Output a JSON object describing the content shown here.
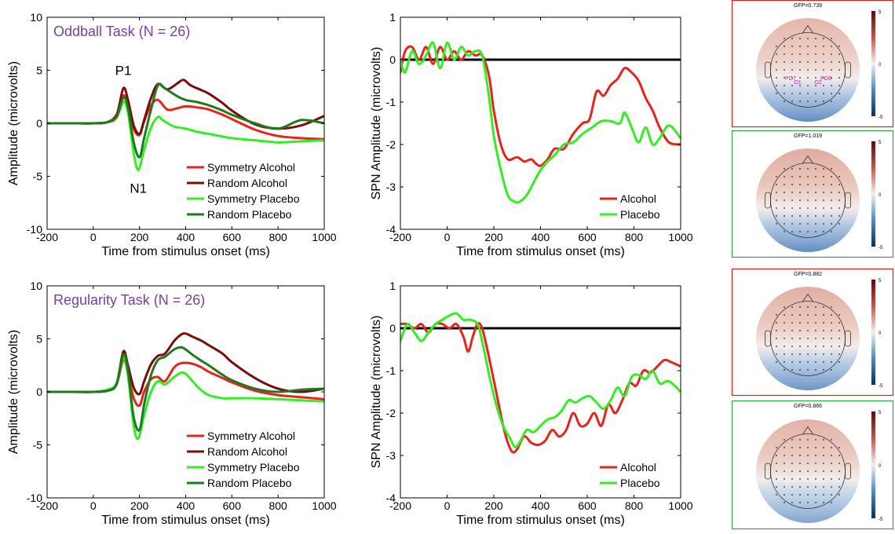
{
  "colors": {
    "symmetry_alcohol": "#e8231c",
    "random_alcohol": "#7a0c0c",
    "symmetry_placebo": "#33ee22",
    "random_placebo": "#1f7a1f",
    "task_title": "#7a3fa5",
    "topo_red_frame": "#d81f1f",
    "topo_green_frame": "#2aa84a",
    "electrode_label": "#cc22aa"
  },
  "chart_data": [
    {
      "id": "erp_oddball",
      "type": "line",
      "title": "Oddball Task (N = 26)",
      "xlabel": "Time from stimulus onset (ms)",
      "ylabel": "Amplitude (microvolts)",
      "xlim": [
        -200,
        1000
      ],
      "ylim": [
        -10,
        10
      ],
      "xticks": [
        -200,
        0,
        200,
        400,
        600,
        800,
        1000
      ],
      "yticks": [
        -10,
        -5,
        0,
        5,
        10
      ],
      "grid": false,
      "legend": "lower-right",
      "annotations": [
        {
          "text": "P1",
          "x": 130,
          "y": 5
        },
        {
          "text": "N1",
          "x": 195,
          "y": -6.1
        }
      ],
      "series": [
        {
          "name": "Symmetry Alcohol",
          "color_key": "symmetry_alcohol",
          "x": [
            -200,
            -100,
            0,
            60,
            100,
            130,
            150,
            175,
            200,
            220,
            250,
            280,
            320,
            360,
            400,
            450,
            500,
            560,
            600,
            700,
            800,
            900,
            1000
          ],
          "y": [
            0,
            0,
            0,
            0.1,
            0.8,
            2.6,
            1.8,
            -0.5,
            -1.1,
            0.2,
            1.7,
            2.2,
            1.3,
            1.4,
            1.6,
            1.5,
            1.3,
            0.8,
            0.4,
            -0.6,
            -1.2,
            -1.4,
            -1.5
          ]
        },
        {
          "name": "Random Alcohol",
          "color_key": "random_alcohol",
          "x": [
            -200,
            -100,
            0,
            60,
            100,
            130,
            150,
            175,
            200,
            220,
            250,
            280,
            320,
            360,
            390,
            420,
            460,
            500,
            560,
            600,
            700,
            800,
            900,
            1000
          ],
          "y": [
            0,
            0,
            0,
            0.1,
            0.7,
            3.3,
            2.2,
            -0.2,
            -1.0,
            0.3,
            2.4,
            3.7,
            3.2,
            3.7,
            4.1,
            3.6,
            3.2,
            2.8,
            1.9,
            1.2,
            -0.1,
            -0.5,
            -0.2,
            0.7
          ]
        },
        {
          "name": "Symmetry Placebo",
          "color_key": "symmetry_placebo",
          "x": [
            -200,
            -100,
            0,
            60,
            100,
            130,
            150,
            175,
            195,
            220,
            250,
            280,
            300,
            350,
            400,
            450,
            500,
            600,
            700,
            800,
            900,
            1000
          ],
          "y": [
            0,
            0,
            0,
            0.1,
            0.5,
            2.0,
            1.0,
            -2.8,
            -4.4,
            -2.5,
            -0.4,
            0.6,
            0.3,
            -0.3,
            -0.5,
            -0.8,
            -1.0,
            -1.4,
            -1.6,
            -1.8,
            -1.7,
            -1.6
          ]
        },
        {
          "name": "Random Placebo",
          "color_key": "random_placebo",
          "x": [
            -200,
            -100,
            0,
            60,
            100,
            130,
            150,
            175,
            200,
            220,
            250,
            280,
            310,
            360,
            400,
            450,
            500,
            560,
            600,
            700,
            800,
            900,
            1000
          ],
          "y": [
            0,
            0,
            0,
            0.1,
            0.6,
            2.4,
            1.5,
            -1.8,
            -3.2,
            -1.4,
            1.3,
            3.6,
            3.3,
            2.6,
            2.2,
            2.0,
            1.7,
            1.2,
            0.8,
            0,
            -0.5,
            0.3,
            0
          ]
        }
      ]
    },
    {
      "id": "spn_oddball",
      "type": "line",
      "xlabel": "Time from stimulus onset (ms)",
      "ylabel": "SPN Amplitude (microvolts)",
      "xlim": [
        -200,
        1000
      ],
      "ylim": [
        -4,
        1
      ],
      "xticks": [
        -200,
        0,
        200,
        400,
        600,
        800,
        1000
      ],
      "yticks": [
        -4,
        -3,
        -2,
        -1,
        0,
        1
      ],
      "grid": false,
      "legend": "lower-right",
      "zero_line": true,
      "series": [
        {
          "name": "Alcohol",
          "color_key": "symmetry_alcohol",
          "x": [
            -200,
            -180,
            -150,
            -120,
            -90,
            -60,
            -30,
            0,
            30,
            60,
            90,
            120,
            150,
            180,
            200,
            230,
            260,
            300,
            330,
            360,
            380,
            400,
            430,
            460,
            500,
            540,
            580,
            610,
            640,
            670,
            700,
            730,
            760,
            790,
            820,
            850,
            880,
            910,
            950,
            1000
          ],
          "y": [
            -0.3,
            0.2,
            0.3,
            0,
            0.3,
            -0.1,
            0.3,
            0,
            0.2,
            0,
            0.2,
            0.1,
            0.1,
            -0.4,
            -1.2,
            -2.0,
            -2.35,
            -2.3,
            -2.4,
            -2.35,
            -2.45,
            -2.5,
            -2.35,
            -2.1,
            -2.1,
            -1.75,
            -1.5,
            -1.4,
            -0.75,
            -0.85,
            -0.6,
            -0.45,
            -0.2,
            -0.3,
            -0.5,
            -0.9,
            -1.2,
            -1.6,
            -1.95,
            -2.0
          ]
        },
        {
          "name": "Placebo",
          "color_key": "symmetry_placebo",
          "x": [
            -200,
            -180,
            -150,
            -120,
            -90,
            -60,
            -30,
            0,
            30,
            60,
            90,
            120,
            150,
            180,
            200,
            230,
            260,
            290,
            310,
            340,
            370,
            400,
            430,
            460,
            500,
            540,
            580,
            620,
            660,
            700,
            740,
            760,
            790,
            820,
            850,
            880,
            910,
            950,
            1000
          ],
          "y": [
            0,
            -0.3,
            0.2,
            -0.1,
            0.1,
            0.4,
            -0.2,
            0.4,
            0,
            0.3,
            0.1,
            0.2,
            0.1,
            -0.9,
            -1.8,
            -2.6,
            -3.2,
            -3.35,
            -3.35,
            -3.2,
            -2.9,
            -2.6,
            -2.4,
            -2.25,
            -2.0,
            -1.95,
            -1.75,
            -1.6,
            -1.45,
            -1.45,
            -1.5,
            -1.25,
            -1.6,
            -1.95,
            -1.6,
            -2.0,
            -1.85,
            -1.55,
            -1.85
          ]
        }
      ]
    },
    {
      "id": "erp_regularity",
      "type": "line",
      "title": "Regularity Task (N = 26)",
      "xlabel": "Time from stimulus onset (ms)",
      "ylabel": "Amplitude (microvolts)",
      "xlim": [
        -200,
        1000
      ],
      "ylim": [
        -10,
        10
      ],
      "xticks": [
        -200,
        0,
        200,
        400,
        600,
        800,
        1000
      ],
      "yticks": [
        -10,
        -5,
        0,
        5,
        10
      ],
      "grid": false,
      "legend": "lower-right",
      "series": [
        {
          "name": "Symmetry Alcohol",
          "color_key": "symmetry_alcohol",
          "x": [
            -200,
            -100,
            0,
            60,
            100,
            130,
            150,
            175,
            200,
            220,
            250,
            280,
            310,
            350,
            380,
            420,
            460,
            500,
            560,
            600,
            700,
            800,
            900,
            1000
          ],
          "y": [
            0,
            0,
            0,
            0.1,
            0.7,
            3.0,
            1.8,
            -0.6,
            -1.3,
            0,
            1.2,
            1.4,
            1.0,
            2.3,
            2.7,
            2.7,
            2.4,
            1.9,
            1.3,
            0.9,
            0.1,
            -0.3,
            -0.5,
            -0.7
          ]
        },
        {
          "name": "Random Alcohol",
          "color_key": "random_alcohol",
          "x": [
            -200,
            -100,
            0,
            60,
            100,
            130,
            150,
            175,
            200,
            220,
            250,
            280,
            310,
            350,
            380,
            400,
            430,
            470,
            500,
            560,
            600,
            700,
            800,
            900,
            1000
          ],
          "y": [
            0,
            0,
            0,
            0.1,
            0.7,
            3.8,
            2.5,
            0.4,
            -0.2,
            1.0,
            2.6,
            3.4,
            3.6,
            4.8,
            5.4,
            5.5,
            5.2,
            4.8,
            4.4,
            3.6,
            2.8,
            1.3,
            0.3,
            0,
            0.3
          ]
        },
        {
          "name": "Symmetry Placebo",
          "color_key": "symmetry_placebo",
          "x": [
            -200,
            -100,
            0,
            60,
            100,
            130,
            150,
            175,
            195,
            220,
            250,
            280,
            310,
            350,
            380,
            400,
            430,
            460,
            500,
            560,
            600,
            700,
            800,
            900,
            1000
          ],
          "y": [
            0,
            0,
            0,
            0.2,
            0.8,
            3.2,
            1.5,
            -3.2,
            -4.4,
            -2.2,
            0,
            1.0,
            0.7,
            1.4,
            1.8,
            1.7,
            1.0,
            0.3,
            -0.3,
            -0.6,
            -0.6,
            -0.6,
            -0.7,
            -0.8,
            -0.9
          ]
        },
        {
          "name": "Random Placebo",
          "color_key": "random_placebo",
          "x": [
            -200,
            -100,
            0,
            60,
            100,
            130,
            150,
            175,
            200,
            220,
            250,
            280,
            310,
            350,
            380,
            400,
            430,
            470,
            500,
            560,
            600,
            700,
            800,
            900,
            1000
          ],
          "y": [
            0,
            0,
            0,
            0.1,
            0.7,
            3.5,
            2.0,
            -2.4,
            -3.6,
            -1.2,
            1.6,
            3.0,
            3.3,
            4.0,
            4.2,
            4.0,
            3.5,
            2.9,
            2.5,
            1.6,
            1.1,
            0.3,
            0,
            0.2,
            0.3
          ]
        }
      ]
    },
    {
      "id": "spn_regularity",
      "type": "line",
      "xlabel": "Time from stimulus onset (ms)",
      "ylabel": "SPN Amplitude (microvolts)",
      "xlim": [
        -200,
        1000
      ],
      "ylim": [
        -4,
        1
      ],
      "xticks": [
        -200,
        0,
        200,
        400,
        600,
        800,
        1000
      ],
      "yticks": [
        -4,
        -3,
        -2,
        -1,
        0,
        1
      ],
      "grid": false,
      "legend": "lower-right",
      "zero_line": true,
      "series": [
        {
          "name": "Alcohol",
          "color_key": "symmetry_alcohol",
          "x": [
            -200,
            -170,
            -140,
            -110,
            -80,
            -50,
            -20,
            10,
            40,
            70,
            90,
            110,
            130,
            150,
            180,
            210,
            240,
            260,
            280,
            300,
            330,
            360,
            390,
            420,
            450,
            480,
            510,
            540,
            570,
            600,
            630,
            660,
            690,
            720,
            750,
            780,
            810,
            840,
            870,
            900,
            930,
            960,
            1000
          ],
          "y": [
            0.1,
            0.1,
            0,
            0.1,
            -0.1,
            0.1,
            0.1,
            0,
            0.1,
            -0.2,
            -0.55,
            -0.2,
            0.1,
            0,
            -0.7,
            -1.5,
            -2.3,
            -2.7,
            -2.92,
            -2.85,
            -2.55,
            -2.7,
            -2.75,
            -2.65,
            -2.4,
            -2.55,
            -2.4,
            -2.0,
            -2.3,
            -2.25,
            -2.0,
            -2.3,
            -1.8,
            -2.0,
            -1.7,
            -1.3,
            -1.35,
            -1.0,
            -1.05,
            -0.9,
            -0.75,
            -0.8,
            -0.9
          ]
        },
        {
          "name": "Placebo",
          "color_key": "symmetry_placebo",
          "x": [
            -200,
            -170,
            -140,
            -110,
            -80,
            -50,
            -20,
            10,
            40,
            70,
            100,
            130,
            150,
            180,
            210,
            240,
            270,
            290,
            310,
            340,
            370,
            400,
            430,
            460,
            490,
            520,
            550,
            580,
            610,
            640,
            670,
            700,
            730,
            760,
            790,
            820,
            850,
            880,
            910,
            950,
            1000
          ],
          "y": [
            -0.3,
            0.1,
            -0.1,
            -0.3,
            -0.1,
            0.1,
            0.2,
            0.3,
            0.35,
            0.2,
            0.2,
            0.1,
            -0.3,
            -1.1,
            -1.8,
            -2.3,
            -2.6,
            -2.8,
            -2.7,
            -2.4,
            -2.45,
            -2.3,
            -2.15,
            -2.1,
            -1.95,
            -1.7,
            -1.75,
            -1.65,
            -1.6,
            -1.75,
            -1.9,
            -1.7,
            -1.4,
            -1.6,
            -1.15,
            -1.1,
            -1.2,
            -1.0,
            -1.3,
            -1.25,
            -1.5
          ]
        }
      ]
    },
    {
      "id": "topo_1",
      "type": "heatmap",
      "title": "GFP=0.739",
      "colorbar_ticks": [
        5,
        0,
        -5
      ],
      "frame_key": "topo_red_frame",
      "electrode_labels": [
        "PO7",
        "O1",
        "O2",
        "PO8"
      ],
      "posterior_strength": 1.0,
      "frontal_strength": 0.35
    },
    {
      "id": "topo_2",
      "type": "heatmap",
      "title": "GFP=1.019",
      "colorbar_ticks": [
        5,
        0,
        -5
      ],
      "frame_key": "topo_green_frame",
      "electrode_labels": [],
      "posterior_strength": 1.0,
      "frontal_strength": 0.5
    },
    {
      "id": "topo_3",
      "type": "heatmap",
      "title": "GFP=0.882",
      "colorbar_ticks": [
        5,
        0,
        -5
      ],
      "frame_key": "topo_red_frame",
      "electrode_labels": [],
      "posterior_strength": 0.9,
      "frontal_strength": 0.45
    },
    {
      "id": "topo_4",
      "type": "heatmap",
      "title": "GFP=0.866",
      "colorbar_ticks": [
        5,
        0,
        -5
      ],
      "frame_key": "topo_green_frame",
      "electrode_labels": [],
      "posterior_strength": 0.7,
      "frontal_strength": 0.4
    }
  ]
}
